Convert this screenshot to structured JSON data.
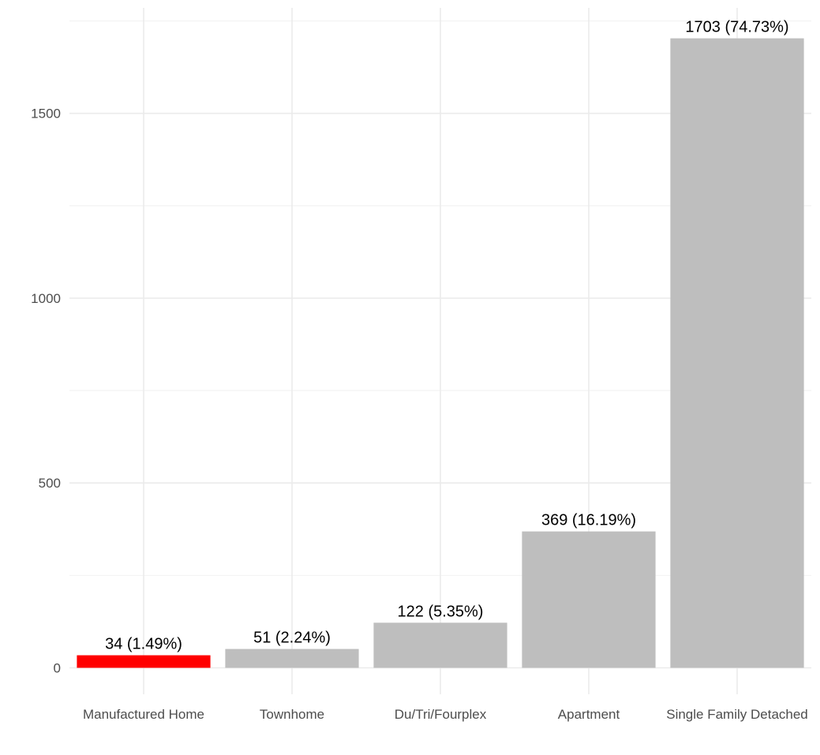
{
  "chart_data": {
    "type": "bar",
    "categories": [
      "Manufactured Home",
      "Townhome",
      "Du/Tri/Fourplex",
      "Apartment",
      "Single Family Detached"
    ],
    "values": [
      34,
      51,
      122,
      369,
      1703
    ],
    "data_labels": [
      "34 (1.49%)",
      "51 (2.24%)",
      "122 (5.35%)",
      "369 (16.19%)",
      "1703 (74.73%)"
    ],
    "title": "",
    "xlabel": "",
    "ylabel": "",
    "ylim": [
      -80,
      1785
    ],
    "y_ticks": [
      0,
      500,
      1000,
      1500
    ],
    "y_tick_labels": [
      "0",
      "500",
      "1000",
      "1500"
    ],
    "grid": true,
    "legend": "none",
    "colors": {
      "highlight": "#ff0000",
      "default": "#bebebe",
      "highlight_category": "Manufactured Home"
    }
  }
}
